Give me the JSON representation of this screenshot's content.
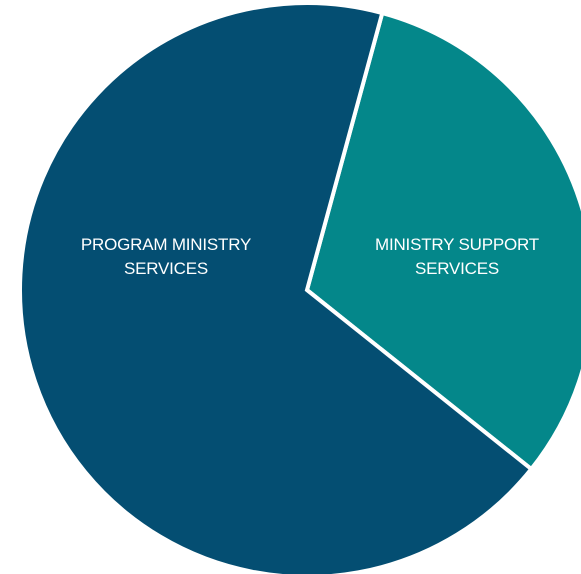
{
  "chart_data": {
    "type": "pie",
    "title": "",
    "slices": [
      {
        "label_lines": [
          "MINISTRY SUPPORT",
          "SERVICES"
        ],
        "value": 31.5,
        "color": "#04878a"
      },
      {
        "label_lines": [
          "PROGRAM MINISTRY",
          "SERVICES"
        ],
        "value": 68.5,
        "color": "#044e72"
      }
    ],
    "slice_border_color": "#ffffff",
    "legend": "none"
  }
}
